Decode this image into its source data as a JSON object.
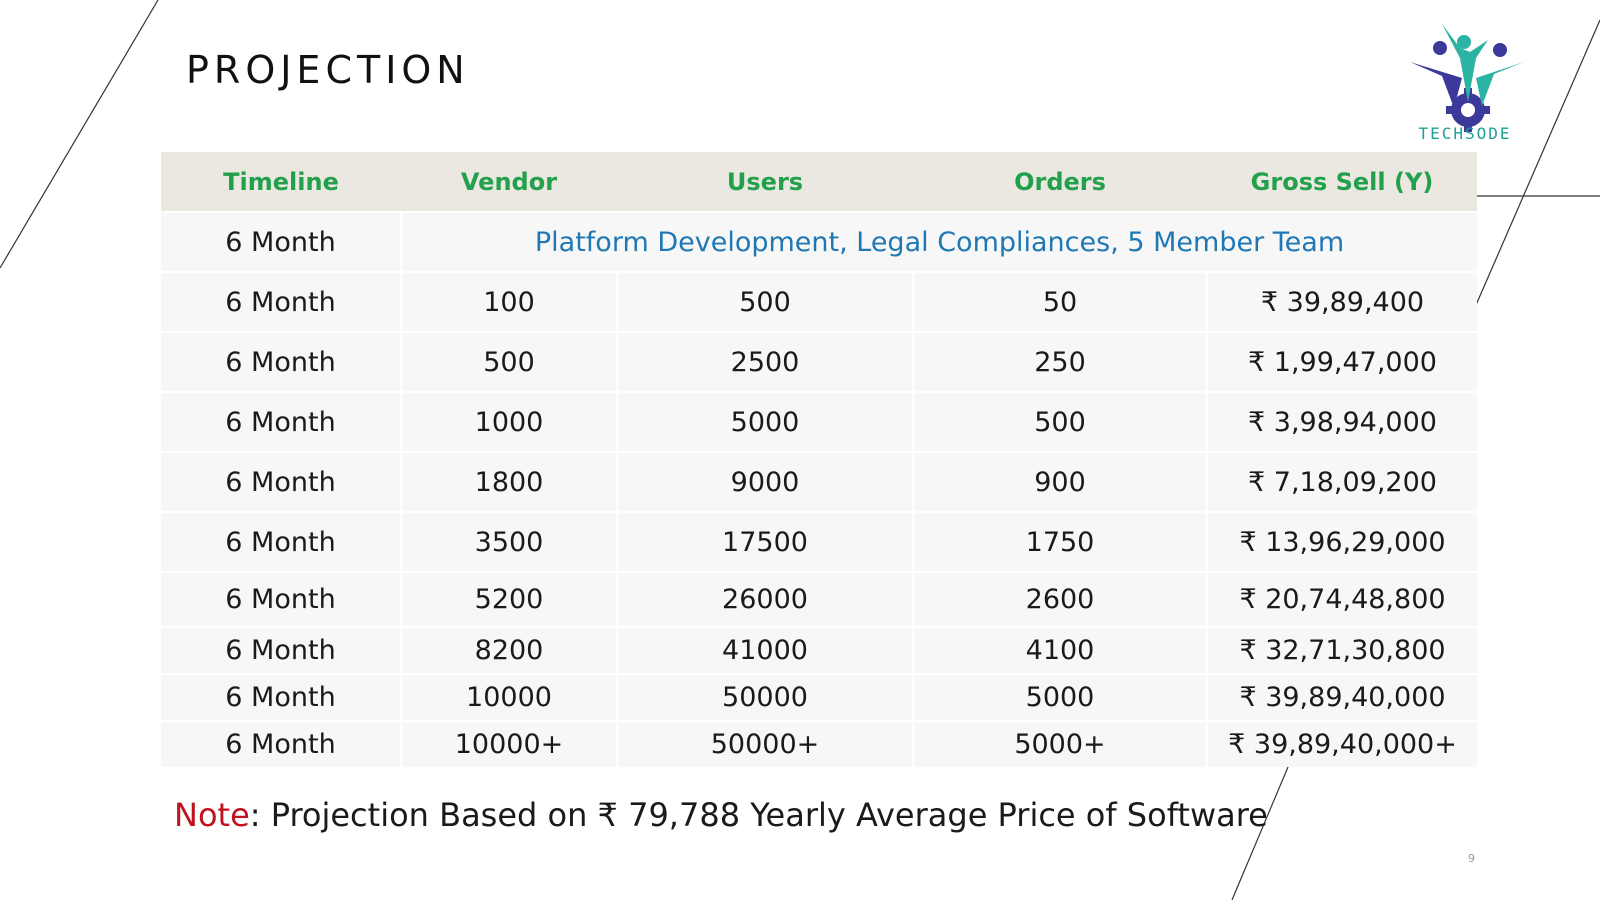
{
  "slide": {
    "title": "PROJECTION",
    "page_number": "9"
  },
  "logo": {
    "text": "TECHSODE",
    "icon": "people-gear-logo-icon",
    "colors": {
      "primary": "#3b3a9a",
      "accent": "#2bb3a3"
    }
  },
  "table": {
    "headers": [
      "Timeline",
      "Vendor",
      "Users",
      "Orders",
      "Gross Sell (Y)"
    ],
    "first_row": {
      "timeline": "6 Month",
      "description": "Platform Development, Legal Compliances, 5 Member Team"
    },
    "rows": [
      [
        "6 Month",
        "100",
        "500",
        "50",
        "₹ 39,89,400"
      ],
      [
        "6 Month",
        "500",
        "2500",
        "250",
        "₹ 1,99,47,000"
      ],
      [
        "6 Month",
        "1000",
        "5000",
        "500",
        "₹ 3,98,94,000"
      ],
      [
        "6 Month",
        "1800",
        "9000",
        "900",
        "₹ 7,18,09,200"
      ],
      [
        "6 Month",
        "3500",
        "17500",
        "1750",
        "₹ 13,96,29,000"
      ],
      [
        "6 Month",
        "5200",
        "26000",
        "2600",
        "₹ 20,74,48,800"
      ],
      [
        "6 Month",
        "8200",
        "41000",
        "4100",
        "₹ 32,71,30,800"
      ],
      [
        "6 Month",
        "10000",
        "50000",
        "5000",
        "₹ 39,89,40,000"
      ],
      [
        "6 Month",
        "10000+",
        "50000+",
        "5000+",
        "₹ 39,89,40,000+"
      ]
    ]
  },
  "note": {
    "label": "Note",
    "text": ": Projection Based on ₹ 79,788 Yearly Average Price of Software"
  },
  "colors": {
    "header_bg": "#ebe7e1",
    "header_text": "#23a04c",
    "row_bg": "#f7f7f7",
    "span_text": "#1f78b4",
    "note_label": "#c1121f"
  }
}
